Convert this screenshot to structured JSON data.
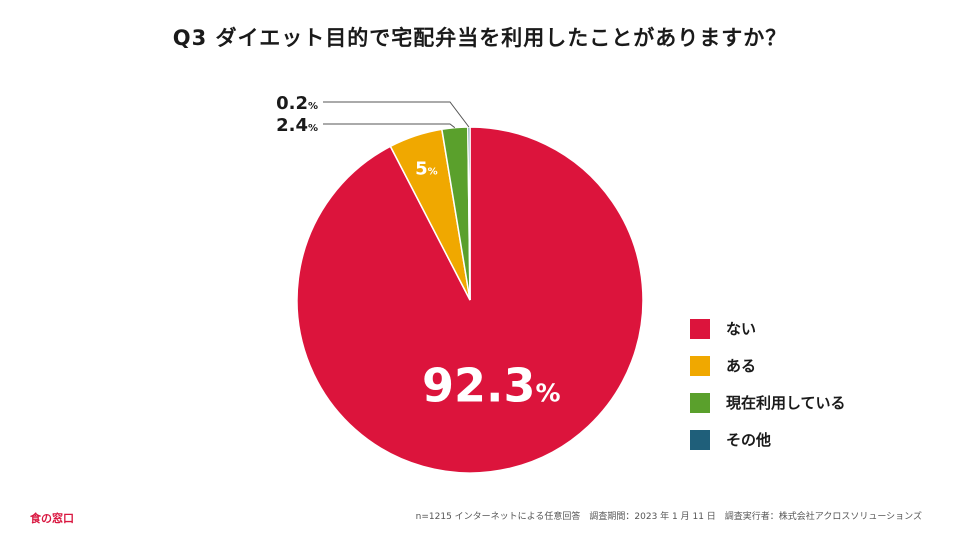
{
  "title": "Q3 ダイエット目的で宅配弁当を利用したことがありますか？",
  "chart_data": {
    "type": "pie",
    "title": "Q3 ダイエット目的で宅配弁当を利用したことがありますか？",
    "categories": [
      "ない",
      "ある",
      "現在利用している",
      "その他"
    ],
    "values": [
      92.3,
      5,
      2.4,
      0.2
    ],
    "labels": [
      "92.3",
      "5",
      "2.4",
      "0.2"
    ],
    "unit": "%",
    "colors": [
      "#dc143c",
      "#f0a800",
      "#5aa02c",
      "#1f5f7a"
    ],
    "legend_position": "right"
  },
  "legend": {
    "items": [
      {
        "label": "ない",
        "color": "#dc143c"
      },
      {
        "label": "ある",
        "color": "#f0a800"
      },
      {
        "label": "現在利用している",
        "color": "#5aa02c"
      },
      {
        "label": "その他",
        "color": "#1f5f7a"
      }
    ]
  },
  "footer": {
    "logo": "食の窓口",
    "note": "n=1215 インターネットによる任意回答　調査期間：2023 年 1 月 11 日　調査実行者：株式会社アクロスソリューションズ"
  }
}
